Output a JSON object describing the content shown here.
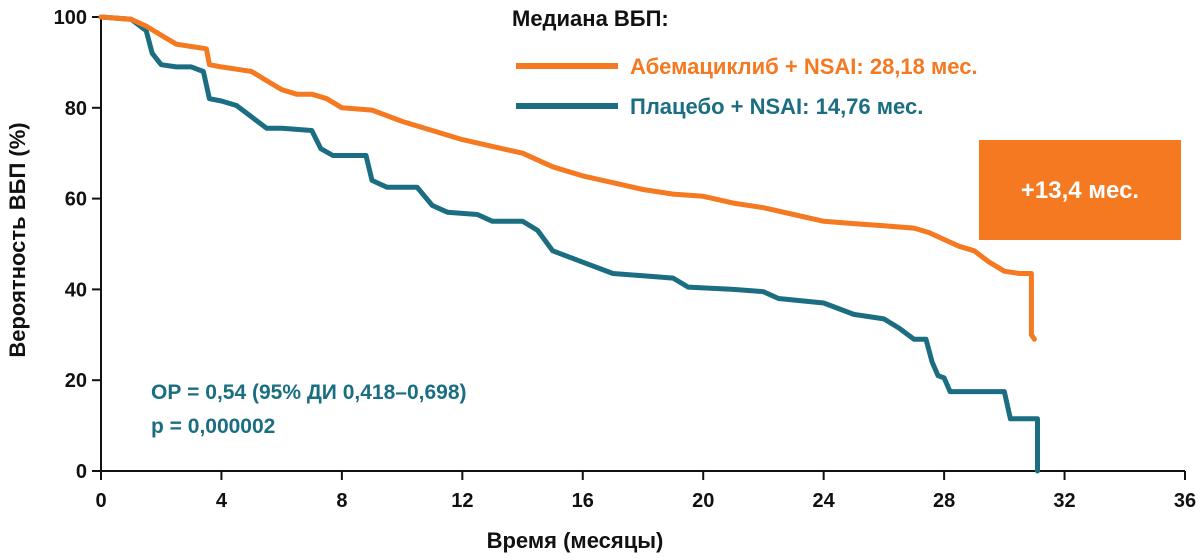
{
  "chart_data": {
    "type": "line",
    "xlabel": "Время (месяцы)",
    "ylabel": "Вероятность ВБП (%)",
    "xlim": [
      0,
      36
    ],
    "ylim": [
      0,
      100
    ],
    "x_ticks": [
      "0",
      "4",
      "8",
      "12",
      "16",
      "20",
      "24",
      "28",
      "32",
      "36"
    ],
    "y_ticks": [
      "0",
      "20",
      "40",
      "60",
      "80",
      "100"
    ],
    "grid": false,
    "legend_title": "Медиана ВБП:",
    "legend_position": "top-right",
    "series": [
      {
        "name": "Абемациклиб + NSAI: 28,18 мес.",
        "color": "#f47920",
        "points": [
          [
            0,
            100
          ],
          [
            1.0,
            99.5
          ],
          [
            1.5,
            98
          ],
          [
            2.0,
            96
          ],
          [
            2.5,
            94
          ],
          [
            3.0,
            93.5
          ],
          [
            3.5,
            93
          ],
          [
            3.6,
            89.5
          ],
          [
            4.0,
            89
          ],
          [
            4.5,
            88.5
          ],
          [
            5.0,
            88
          ],
          [
            5.5,
            86
          ],
          [
            6.0,
            84
          ],
          [
            6.5,
            83
          ],
          [
            7.0,
            83
          ],
          [
            7.5,
            82
          ],
          [
            8.0,
            80
          ],
          [
            9.0,
            79.5
          ],
          [
            10.0,
            77
          ],
          [
            11.0,
            75
          ],
          [
            12.0,
            73
          ],
          [
            13.0,
            71.5
          ],
          [
            14.0,
            70
          ],
          [
            15.0,
            67
          ],
          [
            16.0,
            65
          ],
          [
            17.0,
            63.5
          ],
          [
            18.0,
            62
          ],
          [
            19.0,
            61
          ],
          [
            20.0,
            60.5
          ],
          [
            21.0,
            59
          ],
          [
            22.0,
            58
          ],
          [
            23.0,
            56.5
          ],
          [
            24.0,
            55
          ],
          [
            25.0,
            54.5
          ],
          [
            26.0,
            54
          ],
          [
            27.0,
            53.5
          ],
          [
            27.5,
            52.5
          ],
          [
            28.0,
            51
          ],
          [
            28.5,
            49.5
          ],
          [
            29.0,
            48.5
          ],
          [
            29.5,
            46
          ],
          [
            30.0,
            44
          ],
          [
            30.5,
            43.5
          ],
          [
            30.9,
            43.5
          ],
          [
            30.9,
            30
          ],
          [
            31.0,
            29
          ]
        ]
      },
      {
        "name": "Плацебо + NSAI: 14,76 мес.",
        "color": "#1b6e82",
        "points": [
          [
            0,
            100
          ],
          [
            1.0,
            99.5
          ],
          [
            1.5,
            97
          ],
          [
            1.7,
            92
          ],
          [
            2.0,
            89.5
          ],
          [
            2.5,
            89
          ],
          [
            3.0,
            89
          ],
          [
            3.4,
            88
          ],
          [
            3.6,
            82
          ],
          [
            4.0,
            81.5
          ],
          [
            4.5,
            80.5
          ],
          [
            5.0,
            78
          ],
          [
            5.5,
            75.5
          ],
          [
            6.0,
            75.5
          ],
          [
            7.0,
            75
          ],
          [
            7.3,
            71
          ],
          [
            7.7,
            69.5
          ],
          [
            8.0,
            69.5
          ],
          [
            8.8,
            69.5
          ],
          [
            9.0,
            64
          ],
          [
            9.5,
            62.5
          ],
          [
            10.5,
            62.5
          ],
          [
            11.0,
            58.5
          ],
          [
            11.5,
            57
          ],
          [
            12.5,
            56.5
          ],
          [
            13.0,
            55
          ],
          [
            14.0,
            55
          ],
          [
            14.5,
            53
          ],
          [
            15.0,
            48.5
          ],
          [
            16.0,
            46
          ],
          [
            17.0,
            43.5
          ],
          [
            18.0,
            43
          ],
          [
            19.0,
            42.5
          ],
          [
            19.5,
            40.5
          ],
          [
            21.0,
            40
          ],
          [
            22.0,
            39.5
          ],
          [
            22.5,
            38
          ],
          [
            24.0,
            37
          ],
          [
            25.0,
            34.5
          ],
          [
            26.0,
            33.5
          ],
          [
            26.5,
            31.5
          ],
          [
            27.0,
            29
          ],
          [
            27.4,
            29
          ],
          [
            27.6,
            24
          ],
          [
            27.8,
            21
          ],
          [
            28.0,
            20.5
          ],
          [
            28.2,
            17.5
          ],
          [
            29.0,
            17.5
          ],
          [
            30.0,
            17.5
          ],
          [
            30.2,
            11.5
          ],
          [
            31.0,
            11.5
          ],
          [
            31.1,
            11.5
          ],
          [
            31.1,
            0
          ]
        ]
      }
    ],
    "annotations": {
      "hr": "ОР = 0,54 (95% ДИ 0,418–0,698)",
      "p": "p = 0,000002",
      "callout": "+13,4 мес.",
      "callout_color": "#f47920",
      "stat_color": "#1b6e82"
    }
  }
}
